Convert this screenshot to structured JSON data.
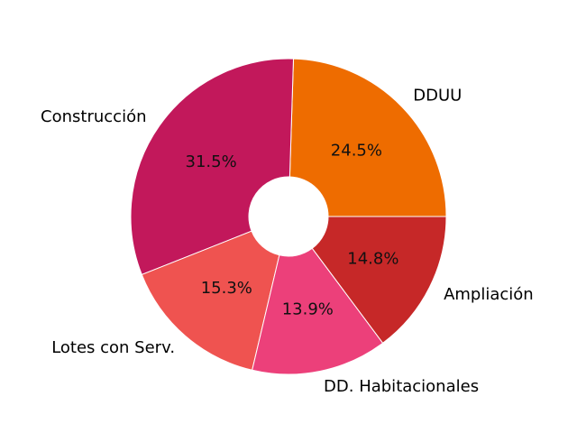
{
  "chart_data": {
    "type": "pie",
    "donut": true,
    "start_angle_deg": 0,
    "direction": "counterclockwise",
    "slices": [
      {
        "label": "DDUU",
        "value": 24.5,
        "pct_label": "24.5%",
        "color": "#ee6c00"
      },
      {
        "label": "Construcción",
        "value": 31.5,
        "pct_label": "31.5%",
        "color": "#c2185b"
      },
      {
        "label": "Lotes con Serv.",
        "value": 15.3,
        "pct_label": "15.3%",
        "color": "#ef5350"
      },
      {
        "label": "DD. Habitacionales",
        "value": 13.9,
        "pct_label": "13.9%",
        "color": "#ec407a"
      },
      {
        "label": "Ampliación",
        "value": 14.8,
        "pct_label": "14.8%",
        "color": "#c62828"
      }
    ]
  }
}
